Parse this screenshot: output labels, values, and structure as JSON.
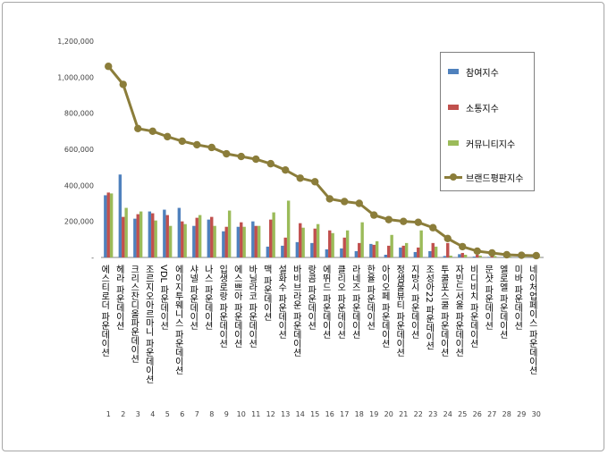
{
  "chart_data": {
    "type": "bar",
    "ylim": [
      0,
      1200000
    ],
    "y_ticks": [
      "-",
      "200,000",
      "400,000",
      "600,000",
      "800,000",
      "1,000,000",
      "1,200,000"
    ],
    "categories": [
      "에스티로더 파운데이션",
      "헤라 파운데이션",
      "크리스찬디올파운데이션",
      "조르지오아르마니 파운데이션",
      "VDL 파운데이션",
      "에이지투웨니스 파운데이션",
      "샤넬 파운데이션",
      "나스 파운데이션",
      "입생로랑 파운데이션",
      "에스쁘아 파운데이션",
      "바닐라코 파운데이션",
      "맥 파운데이션",
      "설화수 파운데이션",
      "바비브라운 파운데이션",
      "랑콤 파운데이션",
      "에뛰드 파운데이션",
      "클리오 파운데이션",
      "라네즈 파운데이션",
      "한율 파운데이션",
      "아이오페 파운데이션",
      "정샘물뷰티 파운데이션",
      "지방시 파운데이션",
      "조성아22 파운데이션",
      "투쿨포스쿨 파운데이션",
      "자빈드서울 파운데이션",
      "비디비치 파운데이션",
      "문샷 파운데이션",
      "엘로엘 파운데이션",
      "미바 파운데이션",
      "네이처업페이스 파운데이션"
    ],
    "ranks": [
      "1",
      "2",
      "3",
      "4",
      "5",
      "6",
      "7",
      "8",
      "9",
      "10",
      "11",
      "12",
      "13",
      "14",
      "15",
      "16",
      "17",
      "18",
      "19",
      "20",
      "21",
      "22",
      "23",
      "24",
      "25",
      "26",
      "27",
      "28",
      "29",
      "30"
    ],
    "series": [
      {
        "name": "참여지수",
        "color": "#4f81bd",
        "values": [
          345000,
          460000,
          215000,
          255000,
          265000,
          275000,
          175000,
          210000,
          145000,
          170000,
          200000,
          60000,
          65000,
          85000,
          80000,
          45000,
          50000,
          35000,
          75000,
          15000,
          55000,
          30000,
          35000,
          8000,
          18000,
          5000,
          3000,
          2000,
          2000,
          1500
        ]
      },
      {
        "name": "소통지수",
        "color": "#c0504d",
        "values": [
          360000,
          225000,
          240000,
          245000,
          235000,
          200000,
          220000,
          225000,
          170000,
          195000,
          175000,
          210000,
          110000,
          190000,
          160000,
          150000,
          110000,
          80000,
          70000,
          65000,
          65000,
          55000,
          80000,
          80000,
          25000,
          15000,
          8000,
          5000,
          4000,
          3000
        ]
      },
      {
        "name": "커뮤니티지수",
        "color": "#9bbb59",
        "values": [
          355000,
          275000,
          255000,
          205000,
          175000,
          185000,
          235000,
          175000,
          260000,
          170000,
          175000,
          250000,
          315000,
          165000,
          185000,
          135000,
          150000,
          195000,
          90000,
          125000,
          80000,
          150000,
          60000,
          10000,
          15000,
          10000,
          8000,
          5000,
          4000,
          3000
        ]
      },
      {
        "name": "브랜드평판지수",
        "color": "#8b7d3a",
        "values": [
          1060000,
          960000,
          715000,
          700000,
          670000,
          645000,
          625000,
          610000,
          575000,
          560000,
          545000,
          520000,
          485000,
          440000,
          420000,
          325000,
          310000,
          300000,
          235000,
          210000,
          200000,
          195000,
          165000,
          105000,
          60000,
          35000,
          25000,
          15000,
          12000,
          10000
        ]
      }
    ]
  }
}
